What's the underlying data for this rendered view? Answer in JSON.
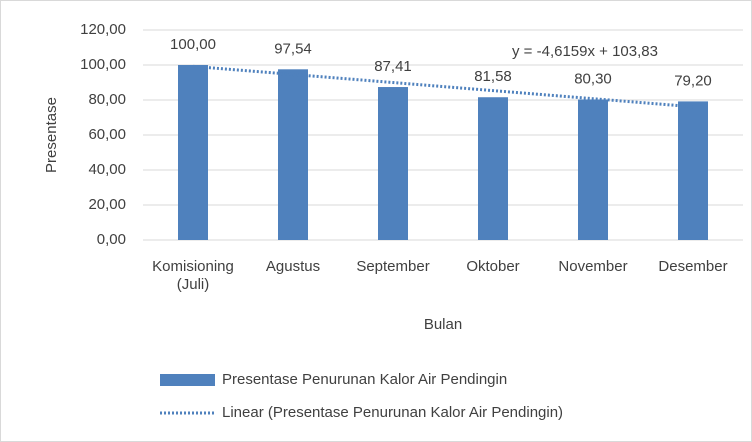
{
  "chart_data": {
    "type": "bar",
    "categories": [
      "Komisioning (Juli)",
      "Agustus",
      "September",
      "Oktober",
      "November",
      "Desember"
    ],
    "series": [
      {
        "name": "Presentase Penurunan Kalor Air Pendingin",
        "color": "#4f81bd",
        "values": [
          100,
          97.54,
          87.41,
          81.58,
          80.3,
          79.2
        ],
        "value_labels": [
          "100,00",
          "97,54",
          "87,41",
          "81,58",
          "80,30",
          "79,20"
        ]
      },
      {
        "name": "Linear (Presentase Penurunan Kalor Air Pendingin)",
        "color": "#4f81bd",
        "type": "line",
        "dash": "dotted",
        "values": [
          99.21,
          94.6,
          89.98,
          85.37,
          80.75,
          76.14
        ]
      }
    ],
    "annotation": "y = -4,6159x + 103,83",
    "xlabel": "Bulan",
    "ylabel": "Presentase",
    "ylim": [
      0,
      120
    ],
    "yticks": [
      {
        "value": 0,
        "label": "0,00"
      },
      {
        "value": 20,
        "label": "20,00"
      },
      {
        "value": 40,
        "label": "40,00"
      },
      {
        "value": 60,
        "label": "60,00"
      },
      {
        "value": 80,
        "label": "80,00"
      },
      {
        "value": 100,
        "label": "100,00"
      },
      {
        "value": 120,
        "label": "120,00"
      }
    ],
    "grid": true,
    "legend": "bottom"
  }
}
